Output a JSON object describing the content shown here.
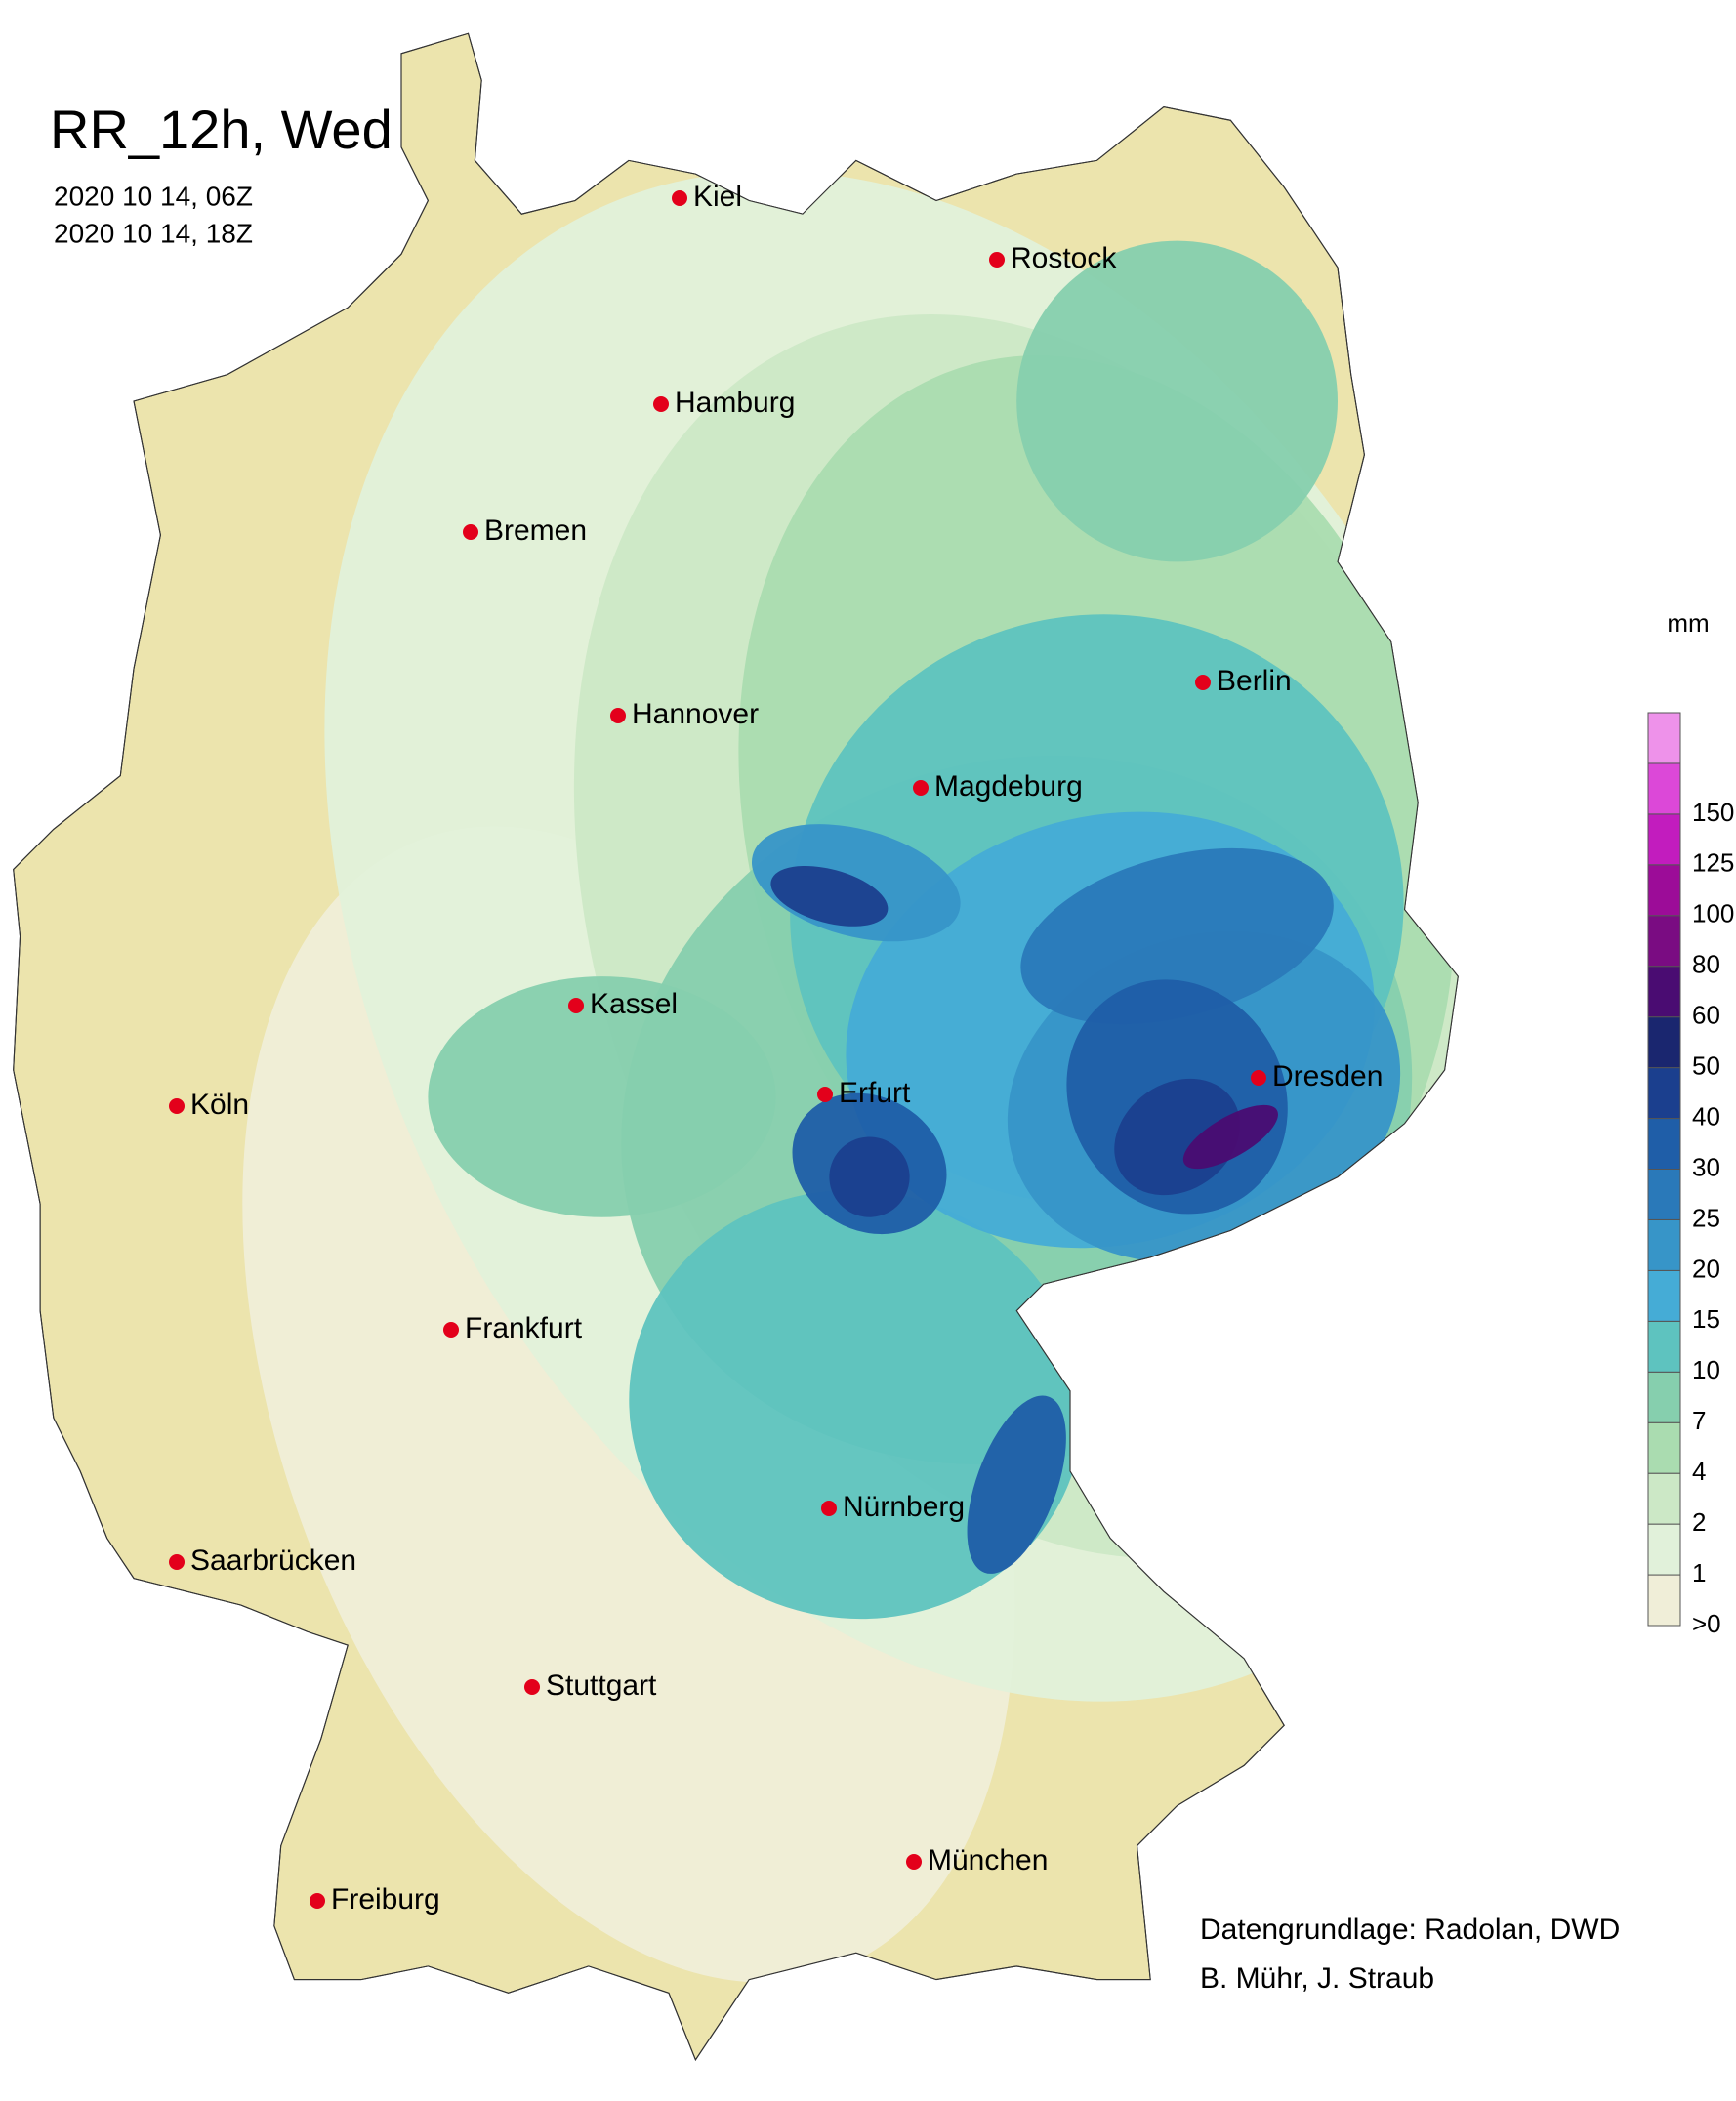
{
  "header": {
    "title": "RR_12h, Wed",
    "times": [
      "2020 10 14, 06Z",
      "2020 10 14, 18Z"
    ]
  },
  "cities": [
    "Kiel",
    "Rostock",
    "Hamburg",
    "Bremen",
    "Hannover",
    "Berlin",
    "Magdeburg",
    "Kassel",
    "Köln",
    "Erfurt",
    "Dresden",
    "Frankfurt",
    "Nürnberg",
    "Saarbrücken",
    "Stuttgart",
    "Freiburg",
    "München"
  ],
  "legend": {
    "unit": "mm",
    "levels": [
      {
        "label": ">0",
        "color": "#f0eed8"
      },
      {
        "label": "1",
        "color": "#e1f1da"
      },
      {
        "label": "2",
        "color": "#cce8c6"
      },
      {
        "label": "4",
        "color": "#aadcb0"
      },
      {
        "label": "7",
        "color": "#86cfae"
      },
      {
        "label": "10",
        "color": "#5ec3bf"
      },
      {
        "label": "15",
        "color": "#45acd6"
      },
      {
        "label": "20",
        "color": "#3795c8"
      },
      {
        "label": "25",
        "color": "#2a79b9"
      },
      {
        "label": "30",
        "color": "#1f5ea8"
      },
      {
        "label": "40",
        "color": "#1b3f8e"
      },
      {
        "label": "50",
        "color": "#1a266f"
      },
      {
        "label": "60",
        "color": "#4a0c72"
      },
      {
        "label": "80",
        "color": "#7a0c82"
      },
      {
        "label": "100",
        "color": "#9c0c98"
      },
      {
        "label": "125",
        "color": "#c21cbe"
      },
      {
        "label": "150",
        "color": "#dc48d8"
      },
      {
        "color": "#ee92ea"
      }
    ]
  },
  "credits": [
    "Datengrundlage: Radolan, DWD",
    "B. Mühr, J. Straub"
  ]
}
